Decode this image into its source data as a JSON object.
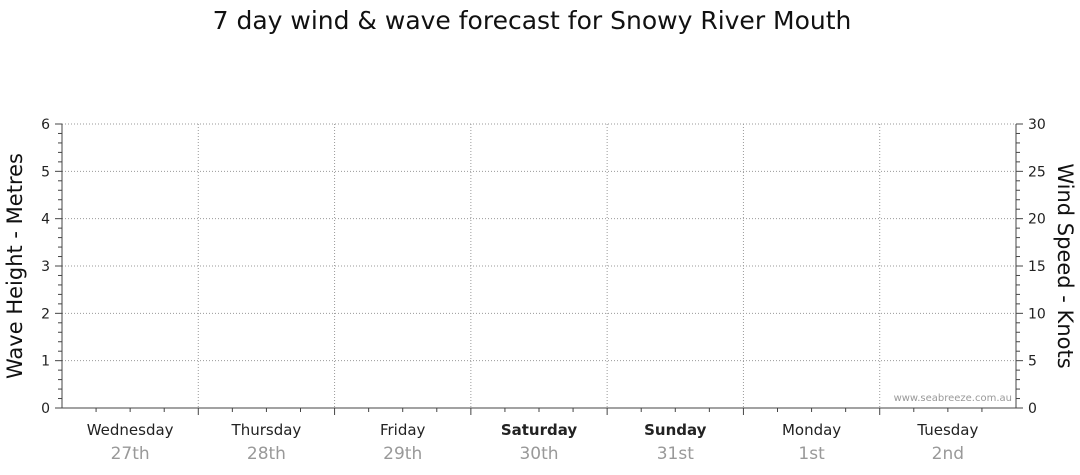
{
  "chart_data": {
    "type": "line",
    "title": "7 day wind & wave forecast for Snowy River Mouth",
    "ylabel": "Wave Height - Metres",
    "y2label": "Wind Speed - Knots",
    "ylim": [
      0,
      6
    ],
    "y2lim": [
      0,
      30
    ],
    "yticks": [
      "0",
      "1",
      "2",
      "3",
      "4",
      "5",
      "6"
    ],
    "y2ticks": [
      "0",
      "5",
      "10",
      "15",
      "20",
      "25",
      "30"
    ],
    "days": [
      {
        "name": "Wednesday",
        "date": "27th",
        "weekend": false
      },
      {
        "name": "Thursday",
        "date": "28th",
        "weekend": false
      },
      {
        "name": "Friday",
        "date": "29th",
        "weekend": false
      },
      {
        "name": "Saturday",
        "date": "30th",
        "weekend": true
      },
      {
        "name": "Sunday",
        "date": "31st",
        "weekend": true
      },
      {
        "name": "Monday",
        "date": "1st",
        "weekend": false
      },
      {
        "name": "Tuesday",
        "date": "2nd",
        "weekend": false
      }
    ],
    "series": [],
    "grid": true,
    "watermark": "www.seabreeze.com.au"
  }
}
